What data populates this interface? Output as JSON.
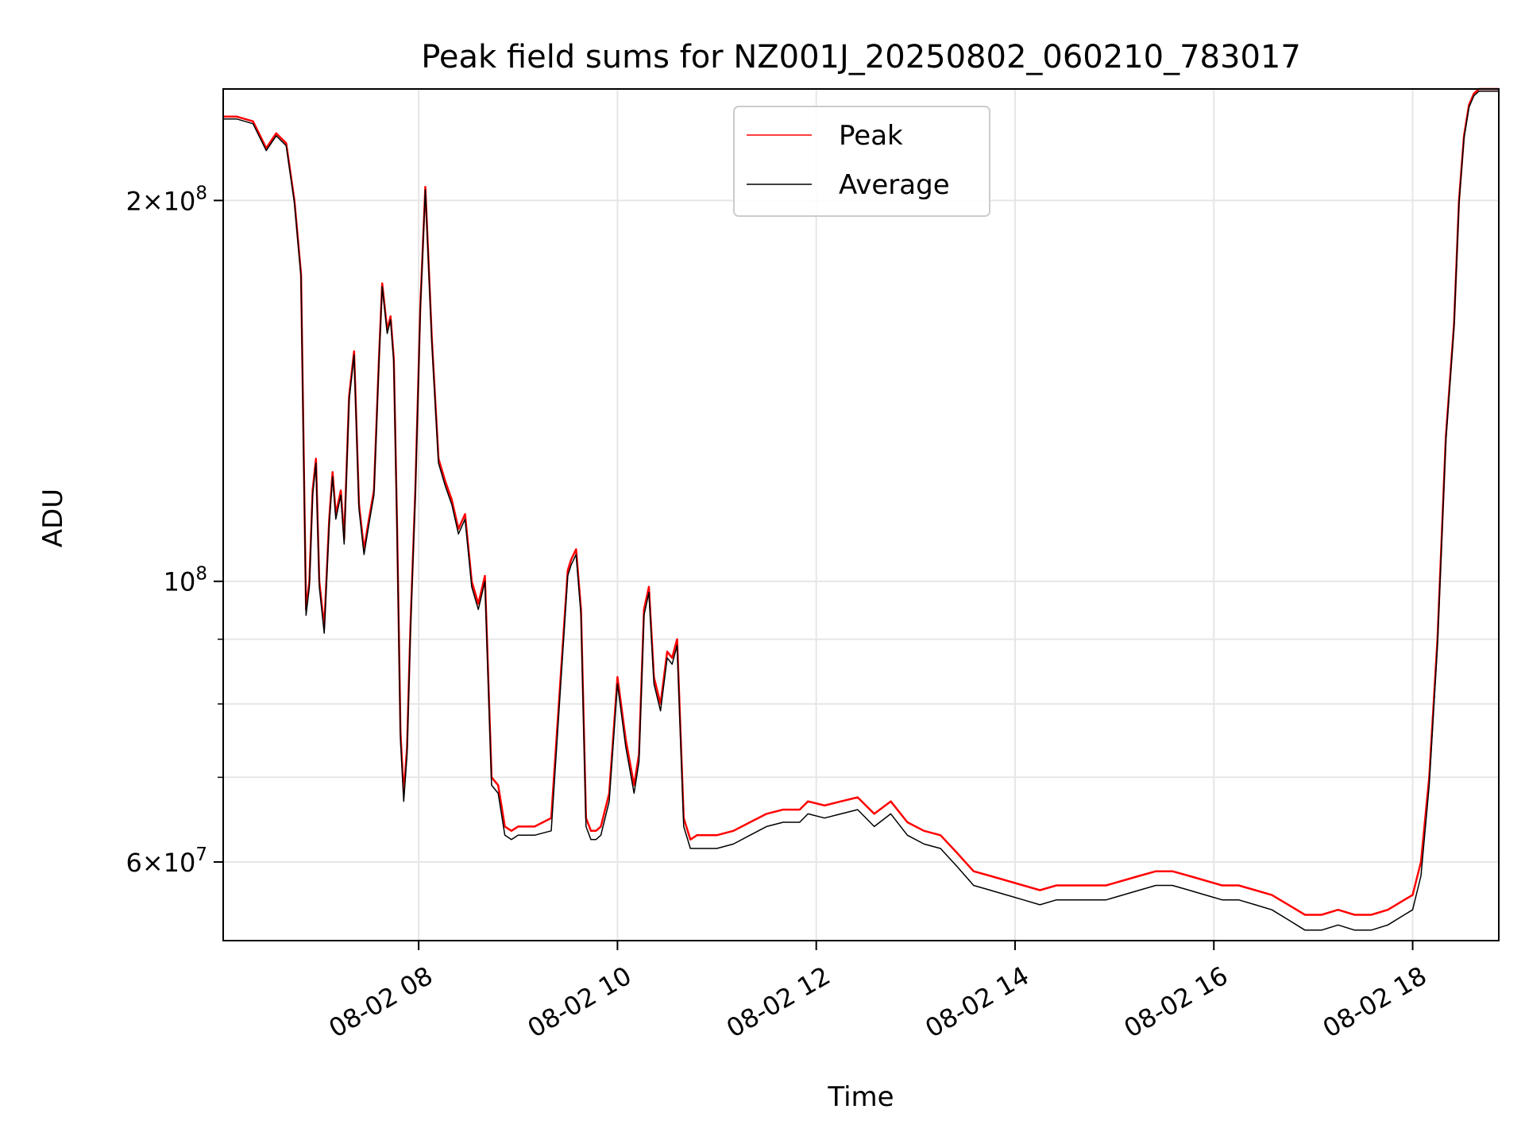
{
  "chart_data": {
    "type": "line",
    "title": "Peak field sums for NZ001J_20250802_060210_783017",
    "xlabel": "Time",
    "ylabel": "ADU",
    "yscale": "log",
    "xlim": [
      "08-02 06:02",
      "08-02 18:52"
    ],
    "ylim": [
      52000000,
      245000000
    ],
    "grid": true,
    "legend_position": "top-center",
    "x_ticks": [
      {
        "t": "08-02 08:00",
        "label": "08-02 08"
      },
      {
        "t": "08-02 10:00",
        "label": "08-02 10"
      },
      {
        "t": "08-02 12:00",
        "label": "08-02 12"
      },
      {
        "t": "08-02 14:00",
        "label": "08-02 14"
      },
      {
        "t": "08-02 16:00",
        "label": "08-02 16"
      },
      {
        "t": "08-02 18:00",
        "label": "08-02 18"
      }
    ],
    "y_ticks_major": [
      {
        "v": 60000000,
        "mant": "6",
        "exp": "7",
        "coef": true
      },
      {
        "v": 100000000,
        "mant": "10",
        "exp": "8",
        "coef": false
      },
      {
        "v": 200000000,
        "mant": "2",
        "exp": "8",
        "coef": true
      }
    ],
    "y_ticks_minor": [
      70000000,
      80000000,
      90000000
    ],
    "series": [
      {
        "name": "Peak",
        "color": "#ff0000",
        "x": [
          "08-02 06:02",
          "08-02 06:10",
          "08-02 06:20",
          "08-02 06:28",
          "08-02 06:34",
          "08-02 06:40",
          "08-02 06:45",
          "08-02 06:49",
          "08-02 06:52",
          "08-02 06:54",
          "08-02 06:56",
          "08-02 06:58",
          "08-02 07:00",
          "08-02 07:03",
          "08-02 07:06",
          "08-02 07:08",
          "08-02 07:10",
          "08-02 07:13",
          "08-02 07:15",
          "08-02 07:18",
          "08-02 07:21",
          "08-02 07:24",
          "08-02 07:27",
          "08-02 07:30",
          "08-02 07:33",
          "08-02 07:36",
          "08-02 07:38",
          "08-02 07:41",
          "08-02 07:43",
          "08-02 07:45",
          "08-02 07:47",
          "08-02 07:49",
          "08-02 07:51",
          "08-02 07:53",
          "08-02 07:55",
          "08-02 07:58",
          "08-02 08:01",
          "08-02 08:04",
          "08-02 08:08",
          "08-02 08:12",
          "08-02 08:16",
          "08-02 08:20",
          "08-02 08:24",
          "08-02 08:28",
          "08-02 08:32",
          "08-02 08:36",
          "08-02 08:40",
          "08-02 08:44",
          "08-02 08:48",
          "08-02 08:52",
          "08-02 08:56",
          "08-02 09:00",
          "08-02 09:10",
          "08-02 09:20",
          "08-02 09:30",
          "08-02 09:32",
          "08-02 09:35",
          "08-02 09:38",
          "08-02 09:41",
          "08-02 09:44",
          "08-02 09:47",
          "08-02 09:50",
          "08-02 09:55",
          "08-02 10:00",
          "08-02 10:05",
          "08-02 10:10",
          "08-02 10:13",
          "08-02 10:16",
          "08-02 10:19",
          "08-02 10:22",
          "08-02 10:26",
          "08-02 10:30",
          "08-02 10:33",
          "08-02 10:36",
          "08-02 10:40",
          "08-02 10:44",
          "08-02 10:48",
          "08-02 10:52",
          "08-02 10:56",
          "08-02 11:00",
          "08-02 11:10",
          "08-02 11:20",
          "08-02 11:30",
          "08-02 11:40",
          "08-02 11:50",
          "08-02 11:55",
          "08-02 12:05",
          "08-02 12:15",
          "08-02 12:25",
          "08-02 12:35",
          "08-02 12:45",
          "08-02 12:55",
          "08-02 13:05",
          "08-02 13:15",
          "08-02 13:25",
          "08-02 13:35",
          "08-02 13:45",
          "08-02 13:55",
          "08-02 14:05",
          "08-02 14:15",
          "08-02 14:25",
          "08-02 14:35",
          "08-02 14:45",
          "08-02 14:55",
          "08-02 15:05",
          "08-02 15:15",
          "08-02 15:25",
          "08-02 15:35",
          "08-02 15:45",
          "08-02 15:55",
          "08-02 16:05",
          "08-02 16:15",
          "08-02 16:25",
          "08-02 16:35",
          "08-02 16:45",
          "08-02 16:55",
          "08-02 17:05",
          "08-02 17:15",
          "08-02 17:25",
          "08-02 17:35",
          "08-02 17:45",
          "08-02 17:55",
          "08-02 18:00",
          "08-02 18:05",
          "08-02 18:10",
          "08-02 18:15",
          "08-02 18:20",
          "08-02 18:25",
          "08-02 18:28",
          "08-02 18:31",
          "08-02 18:34",
          "08-02 18:37",
          "08-02 18:40",
          "08-02 18:45",
          "08-02 18:52"
        ],
        "y": [
          233000000,
          233000000,
          231000000,
          220000000,
          226000000,
          222000000,
          200000000,
          175000000,
          95000000,
          100000000,
          118000000,
          125000000,
          100000000,
          92000000,
          112000000,
          122000000,
          113000000,
          118000000,
          108000000,
          140000000,
          152000000,
          115000000,
          106000000,
          112000000,
          118000000,
          150000000,
          172000000,
          158000000,
          162000000,
          150000000,
          110000000,
          76000000,
          68000000,
          74000000,
          92000000,
          118000000,
          165000000,
          205000000,
          155000000,
          125000000,
          120000000,
          116000000,
          110000000,
          113000000,
          100000000,
          96000000,
          101000000,
          70000000,
          69000000,
          64000000,
          63500000,
          64000000,
          64000000,
          65000000,
          102000000,
          104000000,
          106000000,
          95000000,
          65000000,
          63500000,
          63500000,
          64000000,
          68000000,
          84000000,
          75000000,
          69000000,
          73000000,
          95000000,
          99000000,
          84000000,
          80000000,
          88000000,
          87000000,
          90000000,
          65000000,
          62500000,
          63000000,
          63000000,
          63000000,
          63000000,
          63500000,
          64500000,
          65500000,
          66000000,
          66000000,
          67000000,
          66500000,
          67000000,
          67500000,
          65500000,
          67000000,
          64500000,
          63500000,
          63000000,
          61000000,
          59000000,
          58500000,
          58000000,
          57500000,
          57000000,
          57500000,
          57500000,
          57500000,
          57500000,
          58000000,
          58500000,
          59000000,
          59000000,
          58500000,
          58000000,
          57500000,
          57500000,
          57000000,
          56500000,
          55500000,
          54500000,
          54500000,
          55000000,
          54500000,
          54500000,
          55000000,
          56000000,
          56500000,
          60000000,
          70000000,
          90000000,
          130000000,
          160000000,
          200000000,
          225000000,
          238000000,
          243000000,
          245000000,
          245000000,
          245000000
        ]
      },
      {
        "name": "Average",
        "color": "#000000",
        "x": [
          "08-02 06:02",
          "08-02 06:10",
          "08-02 06:20",
          "08-02 06:28",
          "08-02 06:34",
          "08-02 06:40",
          "08-02 06:45",
          "08-02 06:49",
          "08-02 06:52",
          "08-02 06:54",
          "08-02 06:56",
          "08-02 06:58",
          "08-02 07:00",
          "08-02 07:03",
          "08-02 07:06",
          "08-02 07:08",
          "08-02 07:10",
          "08-02 07:13",
          "08-02 07:15",
          "08-02 07:18",
          "08-02 07:21",
          "08-02 07:24",
          "08-02 07:27",
          "08-02 07:30",
          "08-02 07:33",
          "08-02 07:36",
          "08-02 07:38",
          "08-02 07:41",
          "08-02 07:43",
          "08-02 07:45",
          "08-02 07:47",
          "08-02 07:49",
          "08-02 07:51",
          "08-02 07:53",
          "08-02 07:55",
          "08-02 07:58",
          "08-02 08:01",
          "08-02 08:04",
          "08-02 08:08",
          "08-02 08:12",
          "08-02 08:16",
          "08-02 08:20",
          "08-02 08:24",
          "08-02 08:28",
          "08-02 08:32",
          "08-02 08:36",
          "08-02 08:40",
          "08-02 08:44",
          "08-02 08:48",
          "08-02 08:52",
          "08-02 08:56",
          "08-02 09:00",
          "08-02 09:10",
          "08-02 09:20",
          "08-02 09:30",
          "08-02 09:32",
          "08-02 09:35",
          "08-02 09:38",
          "08-02 09:41",
          "08-02 09:44",
          "08-02 09:47",
          "08-02 09:50",
          "08-02 09:55",
          "08-02 10:00",
          "08-02 10:05",
          "08-02 10:10",
          "08-02 10:13",
          "08-02 10:16",
          "08-02 10:19",
          "08-02 10:22",
          "08-02 10:26",
          "08-02 10:30",
          "08-02 10:33",
          "08-02 10:36",
          "08-02 10:40",
          "08-02 10:44",
          "08-02 10:48",
          "08-02 10:52",
          "08-02 10:56",
          "08-02 11:00",
          "08-02 11:10",
          "08-02 11:20",
          "08-02 11:30",
          "08-02 11:40",
          "08-02 11:50",
          "08-02 11:55",
          "08-02 12:05",
          "08-02 12:15",
          "08-02 12:25",
          "08-02 12:35",
          "08-02 12:45",
          "08-02 12:55",
          "08-02 13:05",
          "08-02 13:15",
          "08-02 13:25",
          "08-02 13:35",
          "08-02 13:45",
          "08-02 13:55",
          "08-02 14:05",
          "08-02 14:15",
          "08-02 14:25",
          "08-02 14:35",
          "08-02 14:45",
          "08-02 14:55",
          "08-02 15:05",
          "08-02 15:15",
          "08-02 15:25",
          "08-02 15:35",
          "08-02 15:45",
          "08-02 15:55",
          "08-02 16:05",
          "08-02 16:15",
          "08-02 16:25",
          "08-02 16:35",
          "08-02 16:45",
          "08-02 16:55",
          "08-02 17:05",
          "08-02 17:15",
          "08-02 17:25",
          "08-02 17:35",
          "08-02 17:45",
          "08-02 17:55",
          "08-02 18:00",
          "08-02 18:05",
          "08-02 18:10",
          "08-02 18:15",
          "08-02 18:20",
          "08-02 18:25",
          "08-02 18:28",
          "08-02 18:31",
          "08-02 18:34",
          "08-02 18:37",
          "08-02 18:40",
          "08-02 18:45",
          "08-02 18:52"
        ],
        "y": [
          232000000,
          232000000,
          230000000,
          219000000,
          225000000,
          221000000,
          199000000,
          174000000,
          94000000,
          99000000,
          117000000,
          124000000,
          99000000,
          91000000,
          111000000,
          121000000,
          112000000,
          117000000,
          107000000,
          139000000,
          151000000,
          114000000,
          105000000,
          111000000,
          117000000,
          149000000,
          171000000,
          157000000,
          161000000,
          149000000,
          109000000,
          75000000,
          67000000,
          73000000,
          91000000,
          117000000,
          164000000,
          204000000,
          154000000,
          124000000,
          119000000,
          115000000,
          109000000,
          112000000,
          99000000,
          95000000,
          100000000,
          69000000,
          68000000,
          63000000,
          62500000,
          63000000,
          63000000,
          63500000,
          101000000,
          103000000,
          105000000,
          94000000,
          64000000,
          62500000,
          62500000,
          63000000,
          67000000,
          83000000,
          74000000,
          68000000,
          72000000,
          94000000,
          98000000,
          83000000,
          79000000,
          87000000,
          86000000,
          89000000,
          64000000,
          61500000,
          61500000,
          61500000,
          61500000,
          61500000,
          62000000,
          63000000,
          64000000,
          64500000,
          64500000,
          65500000,
          65000000,
          65500000,
          66000000,
          64000000,
          65500000,
          63000000,
          62000000,
          61500000,
          59500000,
          57500000,
          57000000,
          56500000,
          56000000,
          55500000,
          56000000,
          56000000,
          56000000,
          56000000,
          56500000,
          57000000,
          57500000,
          57500000,
          57000000,
          56500000,
          56000000,
          56000000,
          55500000,
          55000000,
          54000000,
          53000000,
          53000000,
          53500000,
          53000000,
          53000000,
          53500000,
          54500000,
          55000000,
          58500000,
          69000000,
          89000000,
          129000000,
          159000000,
          199000000,
          224000000,
          237000000,
          242000000,
          244000000,
          244000000,
          244000000
        ]
      }
    ]
  }
}
